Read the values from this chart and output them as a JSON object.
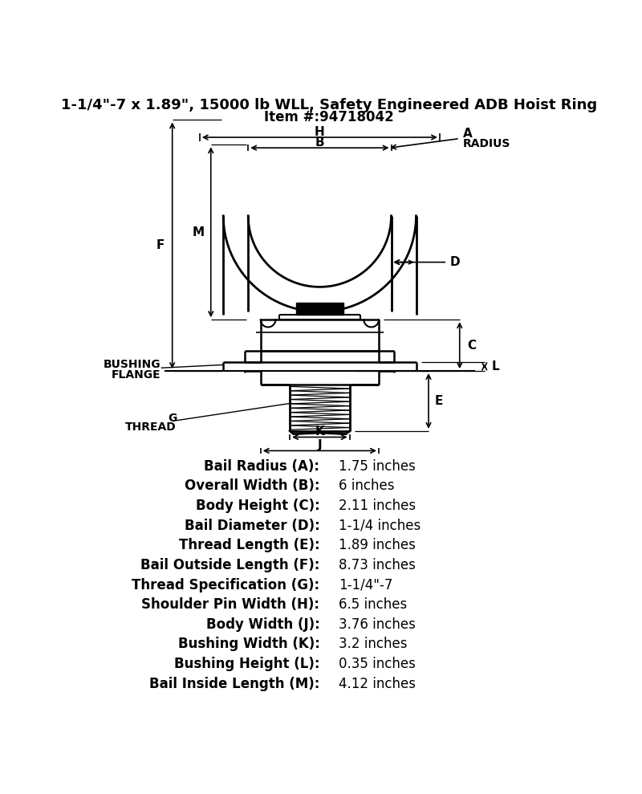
{
  "title_line1": "1-1/4\"-7 x 1.89\", 15000 lb WLL, Safety Engineered ADB Hoist Ring",
  "title_line2": "Item #:94718042",
  "specs": [
    [
      "Bail Radius (A):",
      "1.75 inches"
    ],
    [
      "Overall Width (B):",
      "6 inches"
    ],
    [
      "Body Height (C):",
      "2.11 inches"
    ],
    [
      "Bail Diameter (D):",
      "1-1/4 inches"
    ],
    [
      "Thread Length (E):",
      "1.89 inches"
    ],
    [
      "Bail Outside Length (F):",
      "8.73 inches"
    ],
    [
      "Thread Specification (G):",
      "1-1/4\"-7"
    ],
    [
      "Shoulder Pin Width (H):",
      "6.5 inches"
    ],
    [
      "Body Width (J):",
      "3.76 inches"
    ],
    [
      "Bushing Width (K):",
      "3.2 inches"
    ],
    [
      "Bushing Height (L):",
      "0.35 inches"
    ],
    [
      "Bail Inside Length (M):",
      "4.12 inches"
    ]
  ],
  "bg_color": "#ffffff",
  "line_color": "#000000",
  "title_fontsize": 13,
  "spec_fontsize": 12
}
